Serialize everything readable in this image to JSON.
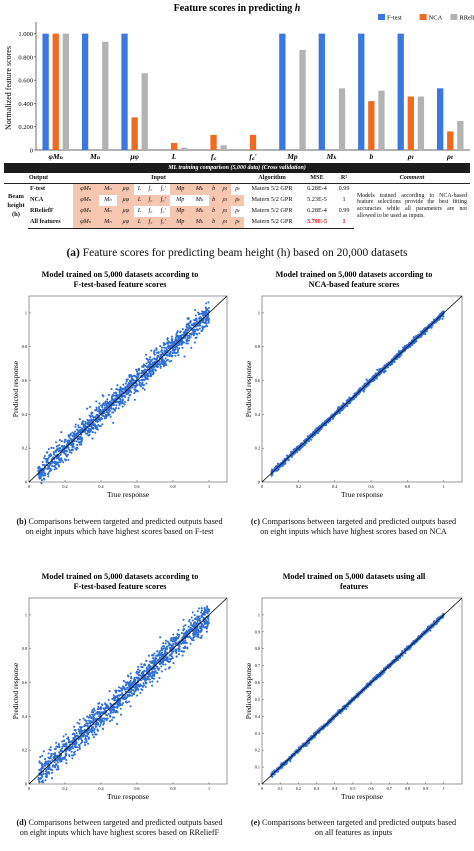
{
  "bar_chart": {
    "title_prefix": "Feature scores in predicting ",
    "title_var": "h",
    "ylabel": "Normalized feature scores",
    "yticks": [
      "0",
      "0.200",
      "0.400",
      "0.600",
      "0.800",
      "1.000"
    ],
    "colors": {
      "F-test": "#3a78e0",
      "NCA": "#f06a1f",
      "RReliefF": "#b3b3b3"
    }
  },
  "chart_data": [
    {
      "type": "bar",
      "title": "Feature scores in predicting h",
      "ylabel": "Normalized feature scores",
      "ylim": [
        0,
        1.1
      ],
      "categories": [
        "φMₙ",
        "Mₙ",
        "μφ",
        "L",
        "f꜀",
        "f꜀'",
        "Mp",
        "Mₖ",
        "b",
        "ρₗ",
        "ρₜ"
      ],
      "legend_position": "top-right",
      "series": [
        {
          "name": "F-test",
          "values": [
            1.0,
            1.0,
            1.0,
            0.0,
            0.0,
            0.0,
            1.0,
            1.0,
            1.0,
            1.0,
            0.53
          ]
        },
        {
          "name": "NCA",
          "values": [
            1.0,
            0.0,
            0.28,
            0.06,
            0.13,
            0.13,
            0.0,
            0.0,
            0.42,
            0.46,
            0.16
          ]
        },
        {
          "name": "RReliefF",
          "values": [
            1.0,
            0.93,
            0.66,
            0.02,
            0.04,
            0.0,
            0.86,
            0.53,
            0.51,
            0.46,
            0.25
          ]
        }
      ]
    },
    {
      "type": "scatter",
      "title": "Model trained on 5,000 datasets according to F-test-based feature scores",
      "xlabel": "True response",
      "ylabel": "Predicted response",
      "xlim": [
        0,
        1.1
      ],
      "ylim": [
        0,
        1.1
      ],
      "xticks": [
        "0",
        "0.2",
        "0.4",
        "0.6",
        "0.8",
        "1"
      ],
      "yticks": [
        "0",
        "0.2",
        "0.4",
        "0.6",
        "0.8",
        "1"
      ],
      "spread": 0.035
    },
    {
      "type": "scatter",
      "title": "Model trained on 5,000 datasets according to NCA-based feature scores",
      "xlabel": "True response",
      "ylabel": "Predicted response",
      "xlim": [
        0,
        1.1
      ],
      "ylim": [
        0,
        1.1
      ],
      "xticks": [
        "0",
        "0.2",
        "0.4",
        "0.6",
        "0.8",
        "1"
      ],
      "yticks": [
        "0",
        "0.2",
        "0.4",
        "0.6",
        "0.8",
        "1"
      ],
      "spread": 0.008
    },
    {
      "type": "scatter",
      "title": "Model trained on 5,000 datasets according to F-test-based feature scores",
      "xlabel": "True response",
      "ylabel": "Predicted response",
      "xlim": [
        0,
        1.1
      ],
      "ylim": [
        0,
        1.1
      ],
      "xticks": [
        "0",
        "0.2",
        "0.4",
        "0.6",
        "0.8",
        "1"
      ],
      "yticks": [
        "0",
        "0.2",
        "0.4",
        "0.6",
        "0.8",
        "1"
      ],
      "spread": 0.04
    },
    {
      "type": "scatter",
      "title": "Model trained on 5,000 datasets using all features",
      "xlabel": "True response",
      "ylabel": "Predicted response",
      "xlim": [
        0,
        1.1
      ],
      "ylim": [
        0,
        1.1
      ],
      "xticks": [
        "0",
        "0.1",
        "0.2",
        "0.3",
        "0.4",
        "0.5",
        "0.6",
        "0.7",
        "0.8",
        "0.9",
        "1"
      ],
      "yticks": [
        "0",
        "0.1",
        "0.2",
        "0.3",
        "0.4",
        "0.5",
        "0.6",
        "0.7",
        "0.8",
        "0.9",
        "1"
      ],
      "spread": 0.006
    }
  ],
  "table": {
    "title": "ML training comparison (5,000 data) (Cross validation)",
    "headers": {
      "output": "Output",
      "input": "Input",
      "algorithm": "Algorithm",
      "mse": "MSE",
      "r2": "R²",
      "comment": "Comment"
    },
    "output_label": "Beam height (h)",
    "rows": [
      {
        "method": "F-test",
        "inputs": [
          "φMₙ",
          "Mₙ",
          "μφ",
          "L",
          "f꜀",
          "f꜀'",
          "Mp",
          "Mₖ",
          "b",
          "ρₗ",
          "ρₜ"
        ],
        "highlight": [
          true,
          true,
          true,
          false,
          false,
          false,
          true,
          true,
          true,
          true,
          false
        ],
        "algorithm": "Matern 5/2 GPR",
        "mse": "6.28E-4",
        "r2": "0.99"
      },
      {
        "method": "NCA",
        "inputs": [
          "φMₙ",
          "Mₙ",
          "μφ",
          "L",
          "f꜀",
          "f꜀'",
          "Mp",
          "Mₖ",
          "b",
          "ρₗ",
          "ρₜ"
        ],
        "highlight": [
          true,
          false,
          true,
          true,
          true,
          true,
          false,
          false,
          true,
          true,
          true
        ],
        "algorithm": "Matern 5/2 GPR",
        "mse": "5.23E-5",
        "r2": "1"
      },
      {
        "method": "RReliefF",
        "inputs": [
          "φMₙ",
          "Mₙ",
          "μφ",
          "L",
          "f꜀",
          "f꜀'",
          "Mp",
          "Mₖ",
          "b",
          "ρₗ",
          "ρₜ"
        ],
        "highlight": [
          true,
          true,
          true,
          false,
          false,
          false,
          true,
          true,
          true,
          true,
          false
        ],
        "algorithm": "Matern 5/2 GPR",
        "mse": "6.28E-4",
        "r2": "0.99"
      },
      {
        "method": "All features",
        "inputs": [
          "φMₙ",
          "Mₙ",
          "μφ",
          "L",
          "f꜀",
          "f꜀'",
          "Mp",
          "Mₖ",
          "b",
          "ρₗ",
          "ρₜ"
        ],
        "highlight": [
          true,
          true,
          true,
          true,
          true,
          true,
          true,
          true,
          true,
          true,
          true
        ],
        "algorithm": "Matern 5/2 GPR",
        "mse": "3.79E-5",
        "r2": "1"
      }
    ],
    "comment": "Models trained according to NCA-based feature selections provide the best fitting accuracies while all parameters are not allowed to be used as inputs."
  },
  "captions": {
    "a_label": "(a)",
    "a_text": " Feature scores for predicting beam height (h) based on 20,000 datasets",
    "b_label": "(b)",
    "b_text": " Comparisons between targeted and predicted outputs based on eight inputs which have highest scores based on F-test",
    "c_label": "(c)",
    "c_text": " Comparisons between targeted and predicted outputs based on eight inputs which have highest scores based on NCA",
    "d_label": "(d)",
    "d_text": " Comparisons between targeted and predicted outputs based on eight inputs which have highest scores based on RReliefF",
    "e_label": "(e)",
    "e_text": " Comparisons between targeted and predicted outputs based on all features as inputs"
  }
}
